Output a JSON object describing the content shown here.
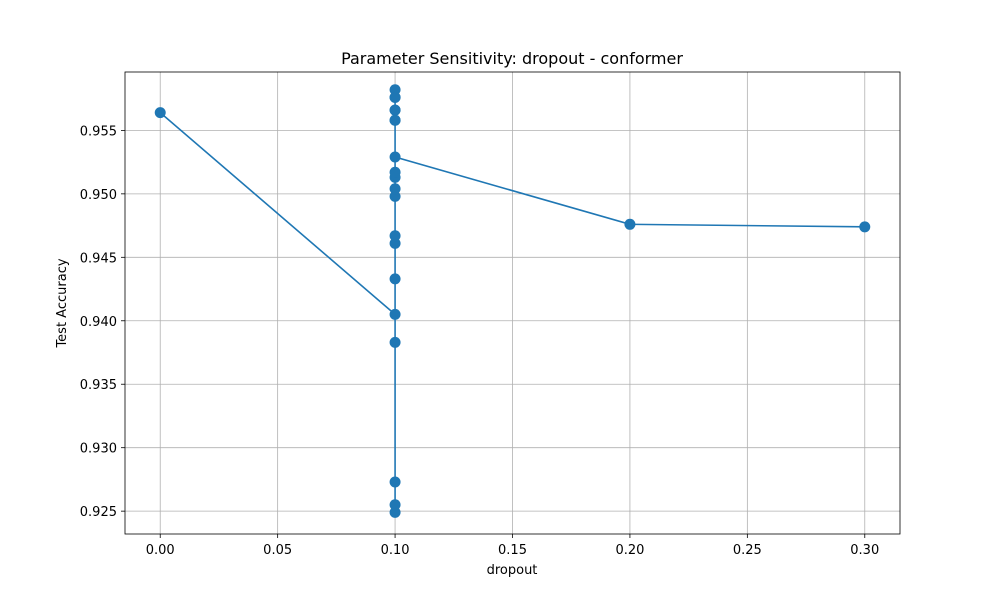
{
  "chart_data": {
    "type": "line",
    "title": "Parameter Sensitivity: dropout - conformer",
    "xlabel": "dropout",
    "ylabel": "Test Accuracy",
    "xlim": [
      -0.015,
      0.315
    ],
    "ylim": [
      0.9232,
      0.9596
    ],
    "xticks": [
      "0.00",
      "0.05",
      "0.10",
      "0.15",
      "0.20",
      "0.25",
      "0.30"
    ],
    "yticks": [
      "0.925",
      "0.930",
      "0.935",
      "0.940",
      "0.945",
      "0.950",
      "0.955"
    ],
    "grid": true,
    "color": "#1f77b4",
    "series": [
      {
        "x": [
          0.0,
          0.1,
          0.1,
          0.1,
          0.1,
          0.1,
          0.1,
          0.1,
          0.1,
          0.1,
          0.1,
          0.1,
          0.1,
          0.1,
          0.1,
          0.1,
          0.1,
          0.1,
          0.1,
          0.1,
          0.1,
          0.2,
          0.3
        ],
        "y": [
          0.9564,
          0.9405,
          0.9383,
          0.9249,
          0.9255,
          0.9273,
          0.9433,
          0.9461,
          0.9467,
          0.9498,
          0.9504,
          0.9513,
          0.9517,
          0.9558,
          0.9566,
          0.9576,
          0.9582,
          0.9558,
          0.9566,
          0.9576,
          0.9529,
          0.9476,
          0.9474
        ]
      }
    ]
  }
}
